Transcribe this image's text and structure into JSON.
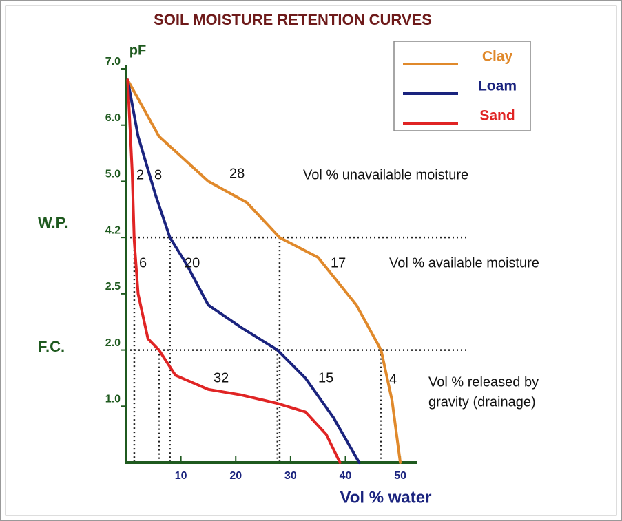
{
  "chart_data": {
    "type": "line",
    "title": "SOIL MOISTURE RETENTION CURVES",
    "ylabel": "pF",
    "xlabel": "Vol % water",
    "xlim": [
      0,
      53
    ],
    "xticks": [
      10,
      20,
      30,
      40,
      50
    ],
    "ylim": [
      0,
      7
    ],
    "yticks": [
      {
        "value": 1,
        "label": "1.0"
      },
      {
        "value": 2,
        "label": "2.0"
      },
      2.5,
      4.2,
      {
        "value": 5,
        "label": "5.0"
      },
      {
        "value": 6,
        "label": "6.0"
      },
      {
        "value": 7,
        "label": "7.0"
      }
    ],
    "hlines": [
      4.2,
      2.0
    ],
    "vlines": [
      {
        "x": 1.5,
        "y": 4.2
      },
      {
        "x": 8,
        "y": 4.2
      },
      {
        "x": 28,
        "y": 4.2
      },
      {
        "x": 6,
        "y": 2.0
      },
      {
        "x": 27.6,
        "y": 2.0
      },
      {
        "x": 46.5,
        "y": 2.0
      }
    ],
    "series": [
      {
        "name": "Clay",
        "color": "#e0892b",
        "x": [
          0.3,
          6,
          15,
          22,
          28,
          35,
          42,
          46.5,
          48.5,
          50
        ],
        "values": [
          6.8,
          5.8,
          5.0,
          4.7,
          4.2,
          3.6,
          2.4,
          2.0,
          1.1,
          0
        ]
      },
      {
        "name": "Loam",
        "color": "#1a237e",
        "x": [
          0.3,
          2.2,
          5.4,
          8,
          11,
          15,
          21,
          27.6,
          32.7,
          37.8,
          42.5
        ],
        "values": [
          6.8,
          5.8,
          4.8,
          4.2,
          3.4,
          2.4,
          2.2,
          2.0,
          1.5,
          0.8,
          0
        ]
      },
      {
        "name": "Sand",
        "color": "#e02424",
        "x": [
          0.3,
          1.1,
          1.5,
          2.2,
          4,
          6,
          9,
          15,
          21,
          27.6,
          32.7,
          36.5,
          39
        ],
        "values": [
          6.8,
          5.2,
          4.1,
          2.5,
          2.1,
          2.0,
          1.55,
          1.3,
          1.2,
          1.05,
          0.9,
          0.5,
          0
        ]
      }
    ],
    "annotations": [
      "W.P.",
      "F.C.",
      "2",
      "8",
      "28",
      "Vol % unavailable moisture",
      "6",
      "20",
      "17",
      "Vol % available moisture",
      "32",
      "15",
      "4",
      "Vol % released by",
      "gravity (drainage)"
    ]
  }
}
